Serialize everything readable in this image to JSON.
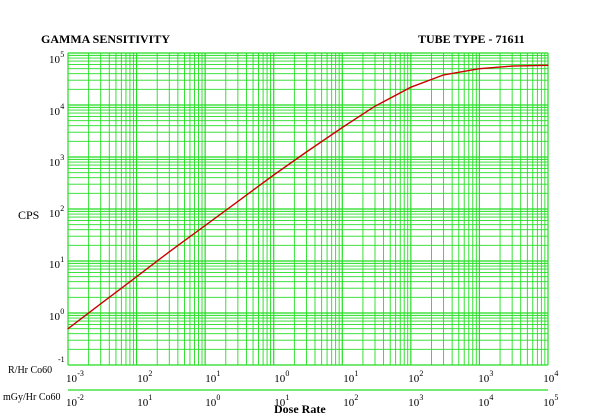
{
  "chart_data": {
    "type": "line",
    "title": "GAMMA SENSITIVITY",
    "subtitle": "TUBE TYPE - 71611",
    "ylabel": "CPS",
    "xlabel": "Dose Rate",
    "y_scale": "log",
    "x_scale": "log",
    "grid": true,
    "ylim": [
      0.1,
      100000
    ],
    "y_ticks": [
      {
        "base": "10",
        "exp": "5"
      },
      {
        "base": "10",
        "exp": "4"
      },
      {
        "base": "10",
        "exp": "3"
      },
      {
        "base": "10",
        "exp": "2"
      },
      {
        "base": "10",
        "exp": "1"
      },
      {
        "base": "10",
        "exp": "0"
      },
      {
        "base": "",
        "exp": "-1"
      }
    ],
    "x_axes": [
      {
        "name": "R/Hr Co60",
        "xlim": [
          0.001,
          10000
        ],
        "ticks": [
          {
            "base": "10",
            "exp": "-3"
          },
          {
            "base": "10",
            "exp": "2"
          },
          {
            "base": "10",
            "exp": "1"
          },
          {
            "base": "10",
            "exp": "0"
          },
          {
            "base": "10",
            "exp": "1"
          },
          {
            "base": "10",
            "exp": "2"
          },
          {
            "base": "10",
            "exp": "3"
          },
          {
            "base": "10",
            "exp": "4"
          }
        ]
      },
      {
        "name": "mGy/Hr Co60",
        "xlim": [
          0.01,
          100000
        ],
        "ticks": [
          {
            "base": "10",
            "exp": "-2"
          },
          {
            "base": "10",
            "exp": "1"
          },
          {
            "base": "10",
            "exp": "0"
          },
          {
            "base": "10",
            "exp": "1"
          },
          {
            "base": "10",
            "exp": "2"
          },
          {
            "base": "10",
            "exp": "3"
          },
          {
            "base": "10",
            "exp": "4"
          },
          {
            "base": "10",
            "exp": "5"
          }
        ]
      }
    ],
    "series": [
      {
        "x_units": "R/Hr Co60",
        "color": "#cc0000",
        "points": [
          [
            0.001,
            0.5
          ],
          [
            0.003,
            1.5
          ],
          [
            0.01,
            5
          ],
          [
            0.03,
            15
          ],
          [
            0.1,
            48
          ],
          [
            0.3,
            140
          ],
          [
            1,
            450
          ],
          [
            3,
            1250
          ],
          [
            10,
            3700
          ],
          [
            30,
            9500
          ],
          [
            100,
            22000
          ],
          [
            300,
            38000
          ],
          [
            1000,
            50000
          ],
          [
            3000,
            56000
          ],
          [
            10000,
            58000
          ]
        ]
      }
    ]
  },
  "colors": {
    "grid": "#22dd22",
    "curve": "#cc0000",
    "text": "#000000"
  }
}
